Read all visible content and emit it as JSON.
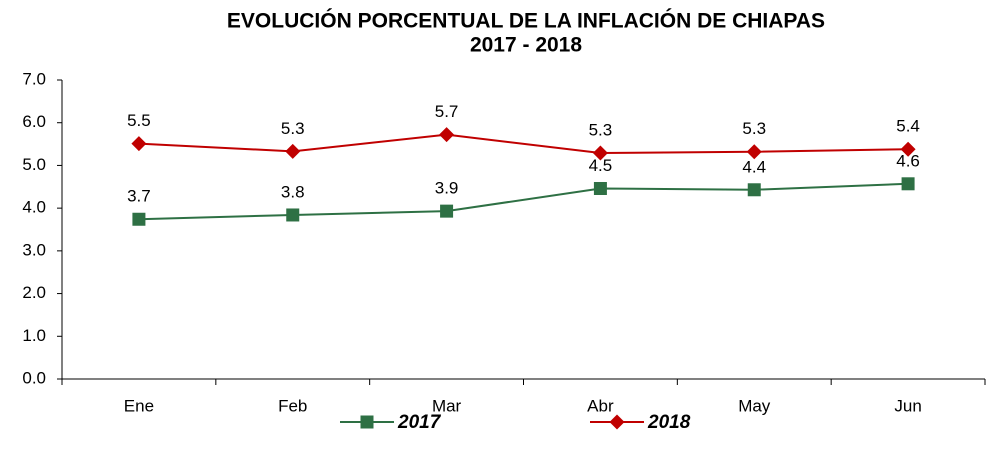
{
  "chart_data": {
    "type": "line",
    "title": "EVOLUCIÓN PORCENTUAL DE LA INFLACIÓN DE CHIAPAS",
    "subtitle": "2017 - 2018",
    "categories": [
      "Ene",
      "Feb",
      "Mar",
      "Abr",
      "May",
      "Jun"
    ],
    "series": [
      {
        "name": "2017",
        "color": "#2e7044",
        "marker": "square",
        "values": [
          3.74,
          3.84,
          3.93,
          4.46,
          4.43,
          4.57
        ],
        "value_labels": [
          "3.7",
          "3.8",
          "3.9",
          "4.5",
          "4.4",
          "4.6"
        ]
      },
      {
        "name": "2018",
        "color": "#c00000",
        "marker": "diamond",
        "values": [
          5.51,
          5.33,
          5.72,
          5.29,
          5.32,
          5.38
        ],
        "value_labels": [
          "5.5",
          "5.3",
          "5.7",
          "5.3",
          "5.3",
          "5.4"
        ]
      }
    ],
    "ylim": [
      0,
      7
    ],
    "yticks": [
      {
        "value": 0,
        "label": "0.0"
      },
      {
        "value": 1,
        "label": "1.0"
      },
      {
        "value": 2,
        "label": "2.0"
      },
      {
        "value": 3,
        "label": "3.0"
      },
      {
        "value": 4,
        "label": "4.0"
      },
      {
        "value": 5,
        "label": "5.0"
      },
      {
        "value": 6,
        "label": "6.0"
      },
      {
        "value": 7,
        "label": "7.0"
      }
    ],
    "grid": false,
    "legend": "bottom"
  }
}
